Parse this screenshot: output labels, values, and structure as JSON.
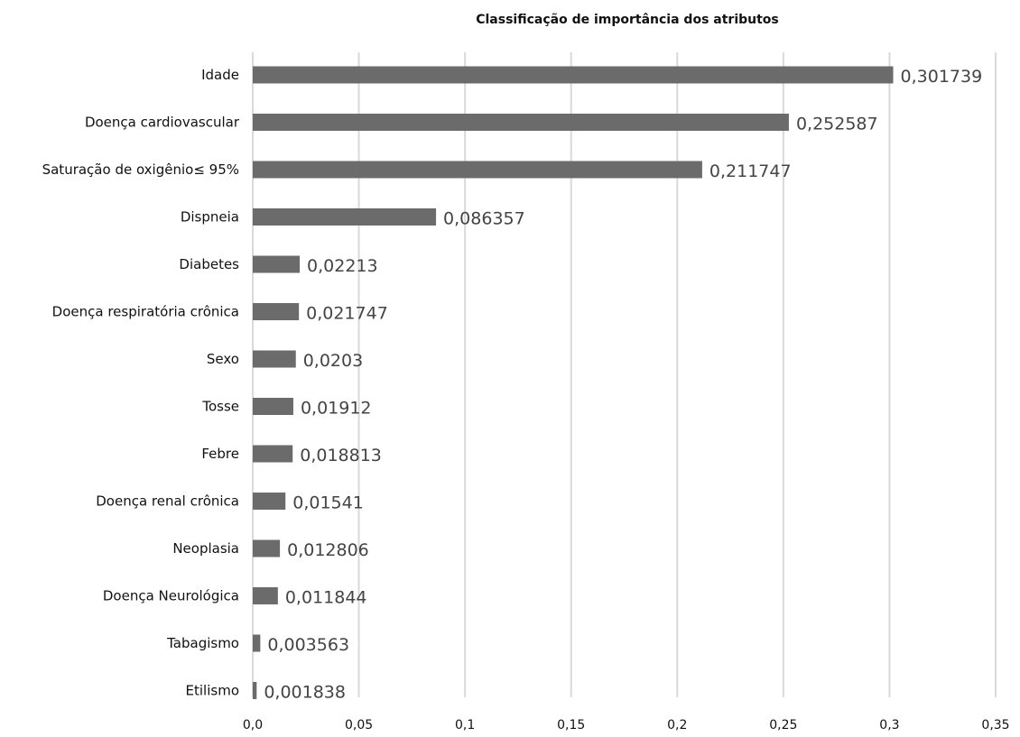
{
  "chart_data": {
    "type": "bar",
    "orientation": "horizontal",
    "title": "Classificação de importância dos atributos",
    "xlabel": "",
    "ylabel": "",
    "categories": [
      "Idade",
      "Doença cardiovascular",
      "Saturação de oxigênio≤ 95%",
      "Dispneia",
      "Diabetes",
      "Doença respiratória crônica",
      "Sexo",
      "Tosse",
      "Febre",
      "Doença renal crônica",
      "Neoplasia",
      "Doença Neurológica",
      "Tabagismo",
      "Etilismo"
    ],
    "values": [
      0.301739,
      0.252587,
      0.211747,
      0.086357,
      0.02213,
      0.021747,
      0.0203,
      0.01912,
      0.018813,
      0.01541,
      0.012806,
      0.011844,
      0.003563,
      0.001838
    ],
    "data_labels": [
      "0,301739",
      "0,252587",
      "0,211747",
      "0,086357",
      "0,02213",
      "0,021747",
      "0,0203",
      "0,01912",
      "0,018813",
      "0,01541",
      "0,012806",
      "0,011844",
      "0,003563",
      "0,001838"
    ],
    "xticks": [
      0,
      0.05,
      0.1,
      0.15,
      0.2,
      0.25,
      0.3,
      0.35
    ],
    "xtick_labels": [
      "0,0",
      "0,05",
      "0,1",
      "0,15",
      "0,2",
      "0,25",
      "0,3",
      "0,35"
    ],
    "xlim": [
      0,
      0.35
    ],
    "grid": "vertical",
    "legend": "none",
    "bar_color": "#6b6b6b",
    "grid_color": "#d9d9d9"
  }
}
